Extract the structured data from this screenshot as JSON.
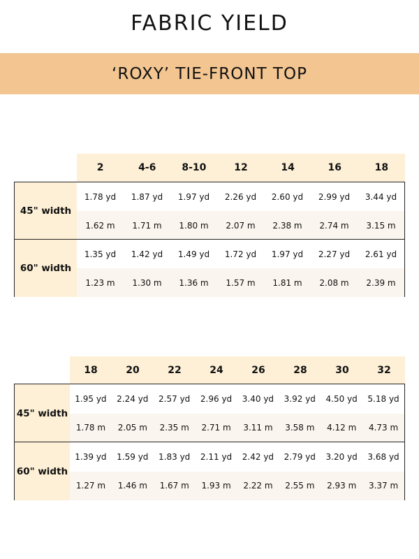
{
  "title": "FABRIC YIELD",
  "subtitle": "‘ROXY’ TIE-FRONT TOP",
  "colors": {
    "banner": "#f2c591",
    "header_bg": "#fdf0d6",
    "metric_row_bg": "#faf5ee"
  },
  "tables": [
    {
      "sizes": [
        "2",
        "4-6",
        "8-10",
        "12",
        "14",
        "16",
        "18"
      ],
      "groups": [
        {
          "label": "45\" width",
          "yd": [
            "1.78 yd",
            "1.87 yd",
            "1.97 yd",
            "2.26 yd",
            "2.60 yd",
            "2.99 yd",
            "3.44 yd"
          ],
          "m": [
            "1.62 m",
            "1.71 m",
            "1.80 m",
            "2.07 m",
            "2.38 m",
            "2.74 m",
            "3.15 m"
          ]
        },
        {
          "label": "60\" width",
          "yd": [
            "1.35 yd",
            "1.42 yd",
            "1.49 yd",
            "1.72 yd",
            "1.97 yd",
            "2.27 yd",
            "2.61 yd"
          ],
          "m": [
            "1.23 m",
            "1.30 m",
            "1.36 m",
            "1.57 m",
            "1.81 m",
            "2.08 m",
            "2.39 m"
          ]
        }
      ]
    },
    {
      "sizes": [
        "18",
        "20",
        "22",
        "24",
        "26",
        "28",
        "30",
        "32"
      ],
      "groups": [
        {
          "label": "45\" width",
          "yd": [
            "1.95 yd",
            "2.24 yd",
            "2.57 yd",
            "2.96 yd",
            "3.40 yd",
            "3.92 yd",
            "4.50 yd",
            "5.18 yd"
          ],
          "m": [
            "1.78 m",
            "2.05 m",
            "2.35 m",
            "2.71 m",
            "3.11 m",
            "3.58 m",
            "4.12 m",
            "4.73 m"
          ]
        },
        {
          "label": "60\" width",
          "yd": [
            "1.39 yd",
            "1.59 yd",
            "1.83 yd",
            "2.11 yd",
            "2.42 yd",
            "2.79 yd",
            "3.20 yd",
            "3.68 yd"
          ],
          "m": [
            "1.27 m",
            "1.46 m",
            "1.67 m",
            "1.93 m",
            "2.22 m",
            "2.55 m",
            "2.93 m",
            "3.37 m"
          ]
        }
      ]
    }
  ]
}
